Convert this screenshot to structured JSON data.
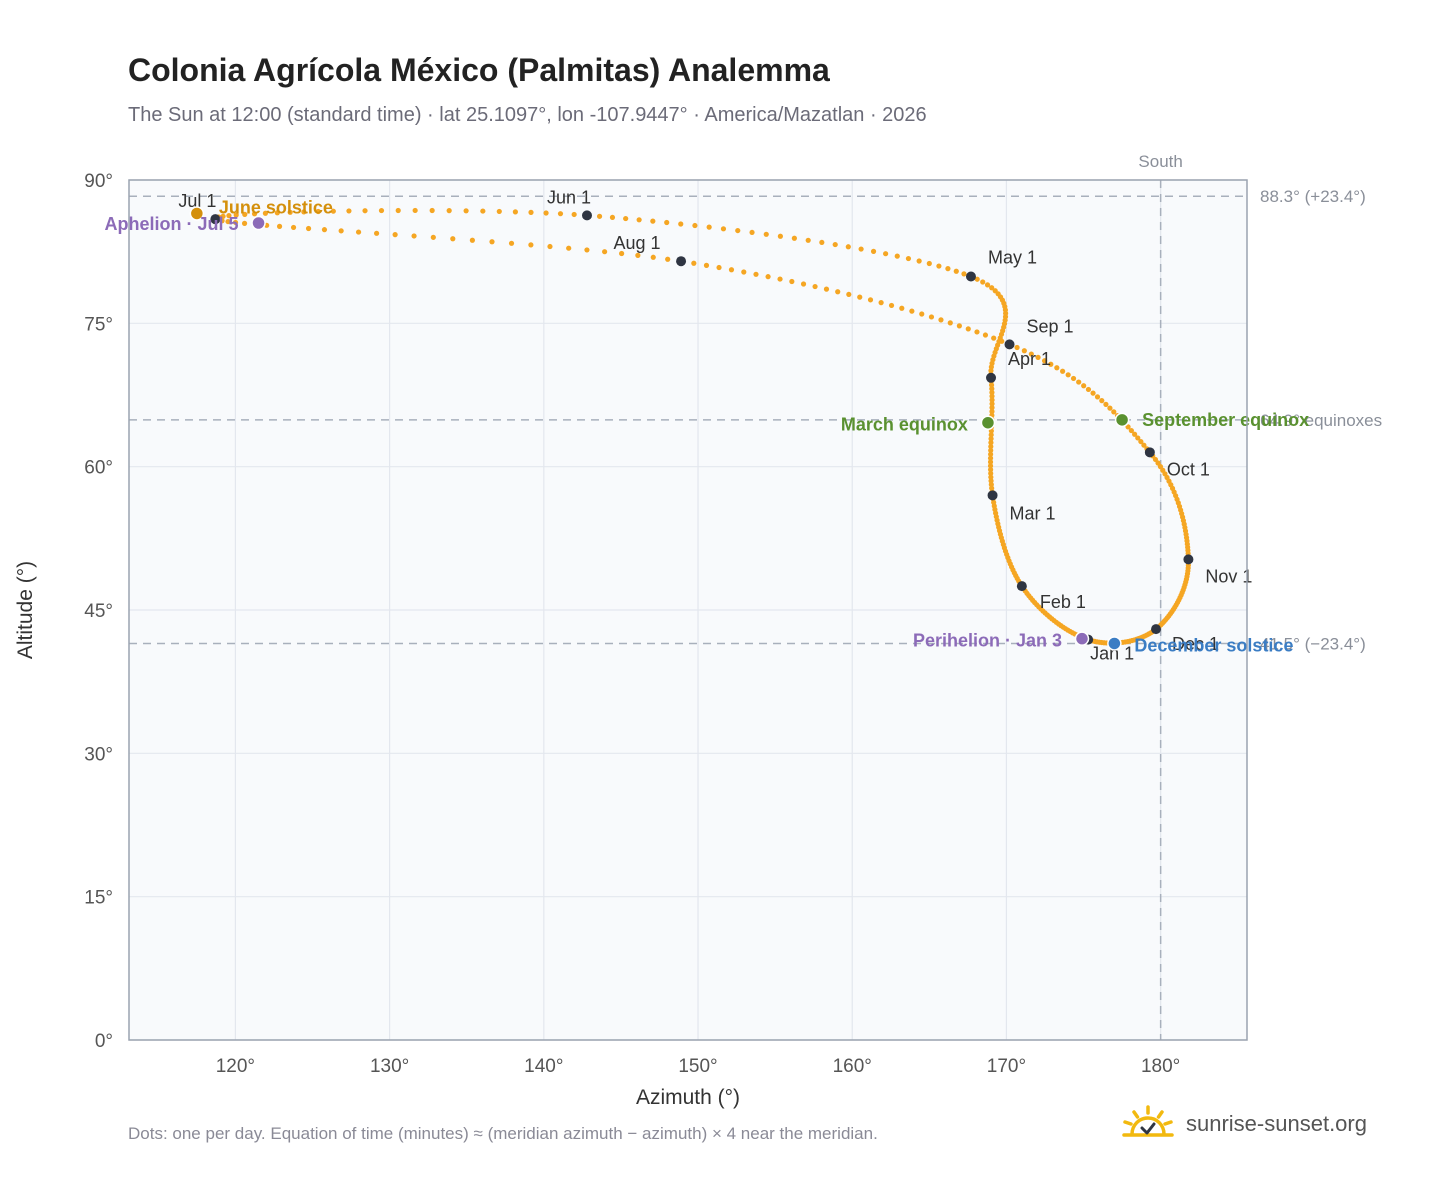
{
  "header": {
    "title": "Colonia Agrícola México (Palmitas) Analemma",
    "subtitle": "The Sun at 12:00 (standard time) · lat 25.1097°, lon -107.9447° · America/Mazatlan · 2026"
  },
  "footer": {
    "note": "Dots: one per day. Equation of time (minutes) ≈ (meridian azimuth − azimuth) × 4 near the meridian.",
    "brand": "sunrise-sunset.org"
  },
  "colors": {
    "curve": "#f5a623",
    "month_dot": "#2f3542",
    "june_solstice": "#d4900c",
    "december_solstice": "#3b7dc4",
    "equinox": "#5a9130",
    "apsis": "#8c6bb8",
    "reference_line": "#a8b0bc",
    "plot_background": "#f8fafc"
  },
  "chart_data": {
    "type": "scatter",
    "title": "Colonia Agrícola México (Palmitas) Analemma",
    "xlabel": "Azimuth (°)",
    "ylabel": "Altitude (°)",
    "xlim": [
      113.1,
      185.6
    ],
    "ylim": [
      0,
      90
    ],
    "x_ticks": [
      120,
      130,
      140,
      150,
      160,
      170,
      180
    ],
    "x_tick_labels": [
      "120°",
      "130°",
      "140°",
      "150°",
      "160°",
      "170°",
      "180°"
    ],
    "y_ticks": [
      0,
      15,
      30,
      45,
      60,
      75,
      90
    ],
    "y_tick_labels": [
      "0°",
      "15°",
      "30°",
      "45°",
      "60°",
      "75°",
      "90°"
    ],
    "grid": true,
    "south_marker": {
      "azimuth": 180,
      "label": "South"
    },
    "reference_lines": [
      {
        "altitude": 88.3,
        "label": "88.3° (+23.4°)"
      },
      {
        "altitude": 64.9,
        "label": "64.9° equinoxes"
      },
      {
        "altitude": 41.5,
        "label": "41.5° (−23.4°)"
      }
    ],
    "month_markers": [
      {
        "label": "Jan 1",
        "azimuth": 175.3,
        "altitude": 41.9
      },
      {
        "label": "Feb 1",
        "azimuth": 171.0,
        "altitude": 47.5
      },
      {
        "label": "Mar 1",
        "azimuth": 169.1,
        "altitude": 57.0
      },
      {
        "label": "Apr 1",
        "azimuth": 169.0,
        "altitude": 69.3
      },
      {
        "label": "May 1",
        "azimuth": 167.7,
        "altitude": 79.9
      },
      {
        "label": "Jun 1",
        "azimuth": 142.8,
        "altitude": 86.3
      },
      {
        "label": "Jul 1",
        "azimuth": 118.7,
        "altitude": 85.9
      },
      {
        "label": "Aug 1",
        "azimuth": 148.9,
        "altitude": 81.5
      },
      {
        "label": "Sep 1",
        "azimuth": 170.2,
        "altitude": 72.8
      },
      {
        "label": "Oct 1",
        "azimuth": 179.3,
        "altitude": 61.5
      },
      {
        "label": "Nov 1",
        "azimuth": 181.8,
        "altitude": 50.3
      },
      {
        "label": "Dec 1",
        "azimuth": 179.7,
        "altitude": 43.0
      }
    ],
    "events": [
      {
        "label": "June solstice",
        "azimuth": 117.5,
        "altitude": 86.5,
        "kind": "june_solstice"
      },
      {
        "label": "December solstice",
        "azimuth": 177.0,
        "altitude": 41.5,
        "kind": "december_solstice"
      },
      {
        "label": "March equinox",
        "azimuth": 168.8,
        "altitude": 64.6,
        "kind": "equinox"
      },
      {
        "label": "September equinox",
        "azimuth": 177.5,
        "altitude": 64.9,
        "kind": "equinox"
      },
      {
        "label": "Aphelion · Jul 5",
        "azimuth": 121.5,
        "altitude": 85.5,
        "kind": "apsis"
      },
      {
        "label": "Perihelion · Jan 3",
        "azimuth": 174.9,
        "altitude": 42.0,
        "kind": "apsis"
      }
    ]
  }
}
